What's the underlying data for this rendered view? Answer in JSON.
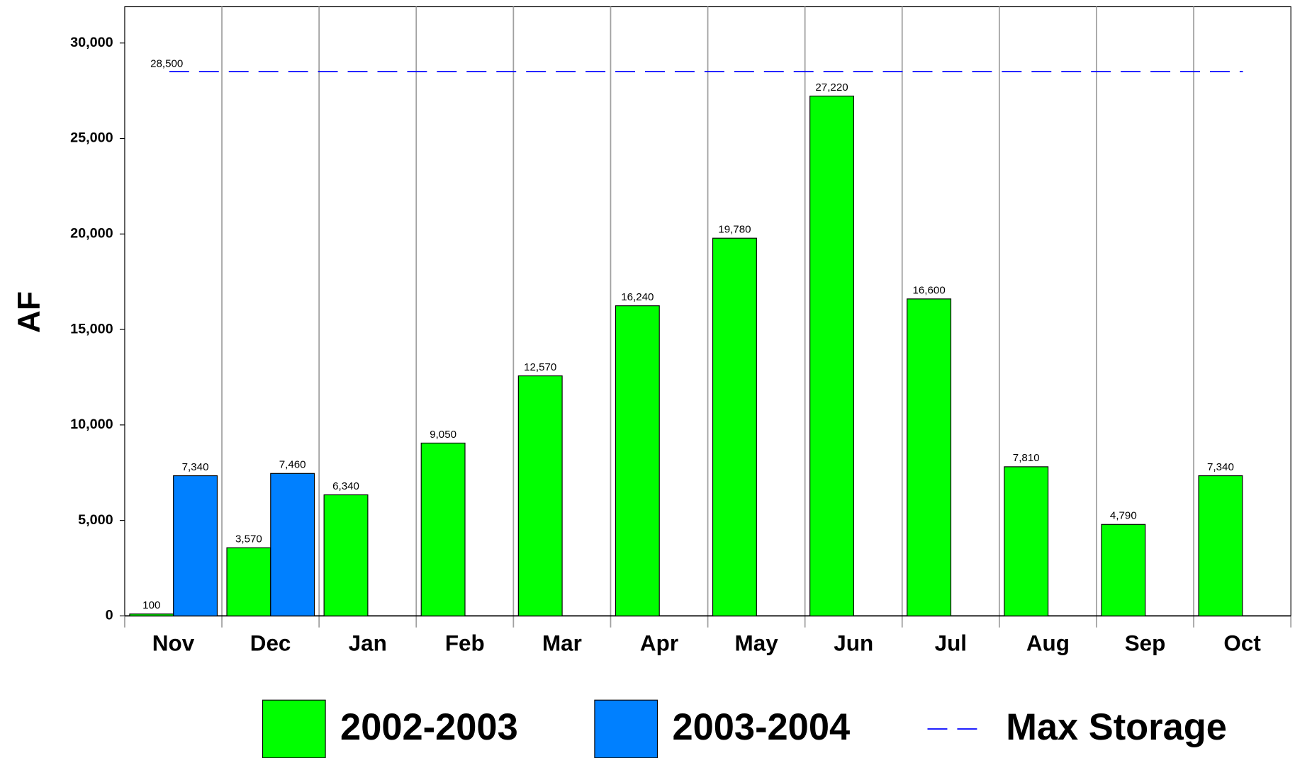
{
  "chart_data": {
    "type": "bar",
    "y_label": "AF",
    "categories": [
      "Nov",
      "Dec",
      "Jan",
      "Feb",
      "Mar",
      "Apr",
      "May",
      "Jun",
      "Jul",
      "Aug",
      "Sep",
      "Oct"
    ],
    "series": [
      {
        "name": "2002-2003",
        "color": "#00ff00",
        "values": [
          100,
          3570,
          6340,
          9050,
          12570,
          16240,
          19780,
          27220,
          16600,
          7810,
          4790,
          7340
        ],
        "value_labels": [
          "100",
          "3,570",
          "6,340",
          "9,050",
          "12,570",
          "16,240",
          "19,780",
          "27,220",
          "16,600",
          "7,810",
          "4,790",
          "7,340"
        ]
      },
      {
        "name": "2003-2004",
        "color": "#0080ff",
        "values": [
          7340,
          7460,
          null,
          null,
          null,
          null,
          null,
          null,
          null,
          null,
          null,
          null
        ],
        "value_labels": [
          "7,340",
          "7,460",
          null,
          null,
          null,
          null,
          null,
          null,
          null,
          null,
          null,
          null
        ]
      }
    ],
    "reference_line": {
      "name": "Max Storage",
      "value": 28500,
      "value_label": "28,500",
      "color": "#0000ff"
    },
    "ylim": [
      0,
      31900
    ],
    "yticks": [
      0,
      {
        "value": 5000,
        "label": "5,000"
      },
      {
        "value": 10000,
        "label": "10,000"
      },
      {
        "value": 15000,
        "label": "15,000"
      },
      {
        "value": 20000,
        "label": "20,000"
      },
      {
        "value": 25000,
        "label": "25,000"
      },
      {
        "value": 30000,
        "label": "30,000"
      }
    ],
    "grid": true
  }
}
